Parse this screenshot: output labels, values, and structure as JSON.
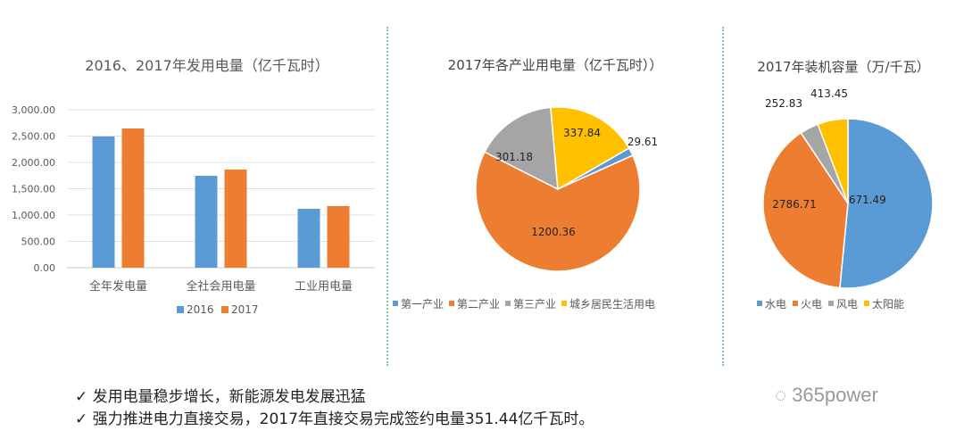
{
  "chart_data": [
    {
      "type": "bar",
      "title": "2016、2017年发用电量（亿千瓦时）",
      "categories": [
        "全年发电量",
        "全社会用电量",
        "工业用电量"
      ],
      "series": [
        {
          "name": "2016",
          "values": [
            2491,
            1746,
            1119
          ],
          "color": "#5b9bd5"
        },
        {
          "name": "2017",
          "values": [
            2644,
            1864,
            1170
          ],
          "color": "#ed7d31"
        }
      ],
      "ylim": [
        0,
        3000
      ],
      "yticks": [
        "0.00",
        "500.00",
        "1,000.00",
        "1,500.00",
        "2,000.00",
        "2,500.00",
        "3,000.00"
      ],
      "grid": true,
      "legend": "bottom"
    },
    {
      "type": "pie",
      "title": "2017年各产业用电量（亿千瓦时））",
      "labels": [
        "第一产业",
        "第二产业",
        "第三产业",
        "城乡居民生活用电"
      ],
      "values": [
        29.61,
        1200.36,
        301.18,
        337.84
      ],
      "value_labels": [
        "29.61",
        "1200.36",
        "301.18",
        "337.84"
      ],
      "colors": [
        "#5b9bd5",
        "#ed7d31",
        "#a5a5a5",
        "#ffc000"
      ],
      "legend": "bottom"
    },
    {
      "type": "pie",
      "title": "2017年装机容量（万/千瓦）",
      "labels": [
        "水电",
        "火电",
        "风电",
        "太阳能"
      ],
      "values": [
        3671.49,
        2786.71,
        252.83,
        413.45
      ],
      "value_labels": [
        "3671.49",
        "2786.71",
        "252.83",
        "413.45"
      ],
      "colors": [
        "#5b9bd5",
        "#ed7d31",
        "#a5a5a5",
        "#ffc000"
      ],
      "legend": "bottom"
    }
  ],
  "bullets": [
    "✓ 发用电量稳步增长，新能源发电发展迅猛",
    "✓ 强力推进电力直接交易，2017年直接交易完成签约电量351.44亿千瓦时。"
  ],
  "watermark": "365power"
}
